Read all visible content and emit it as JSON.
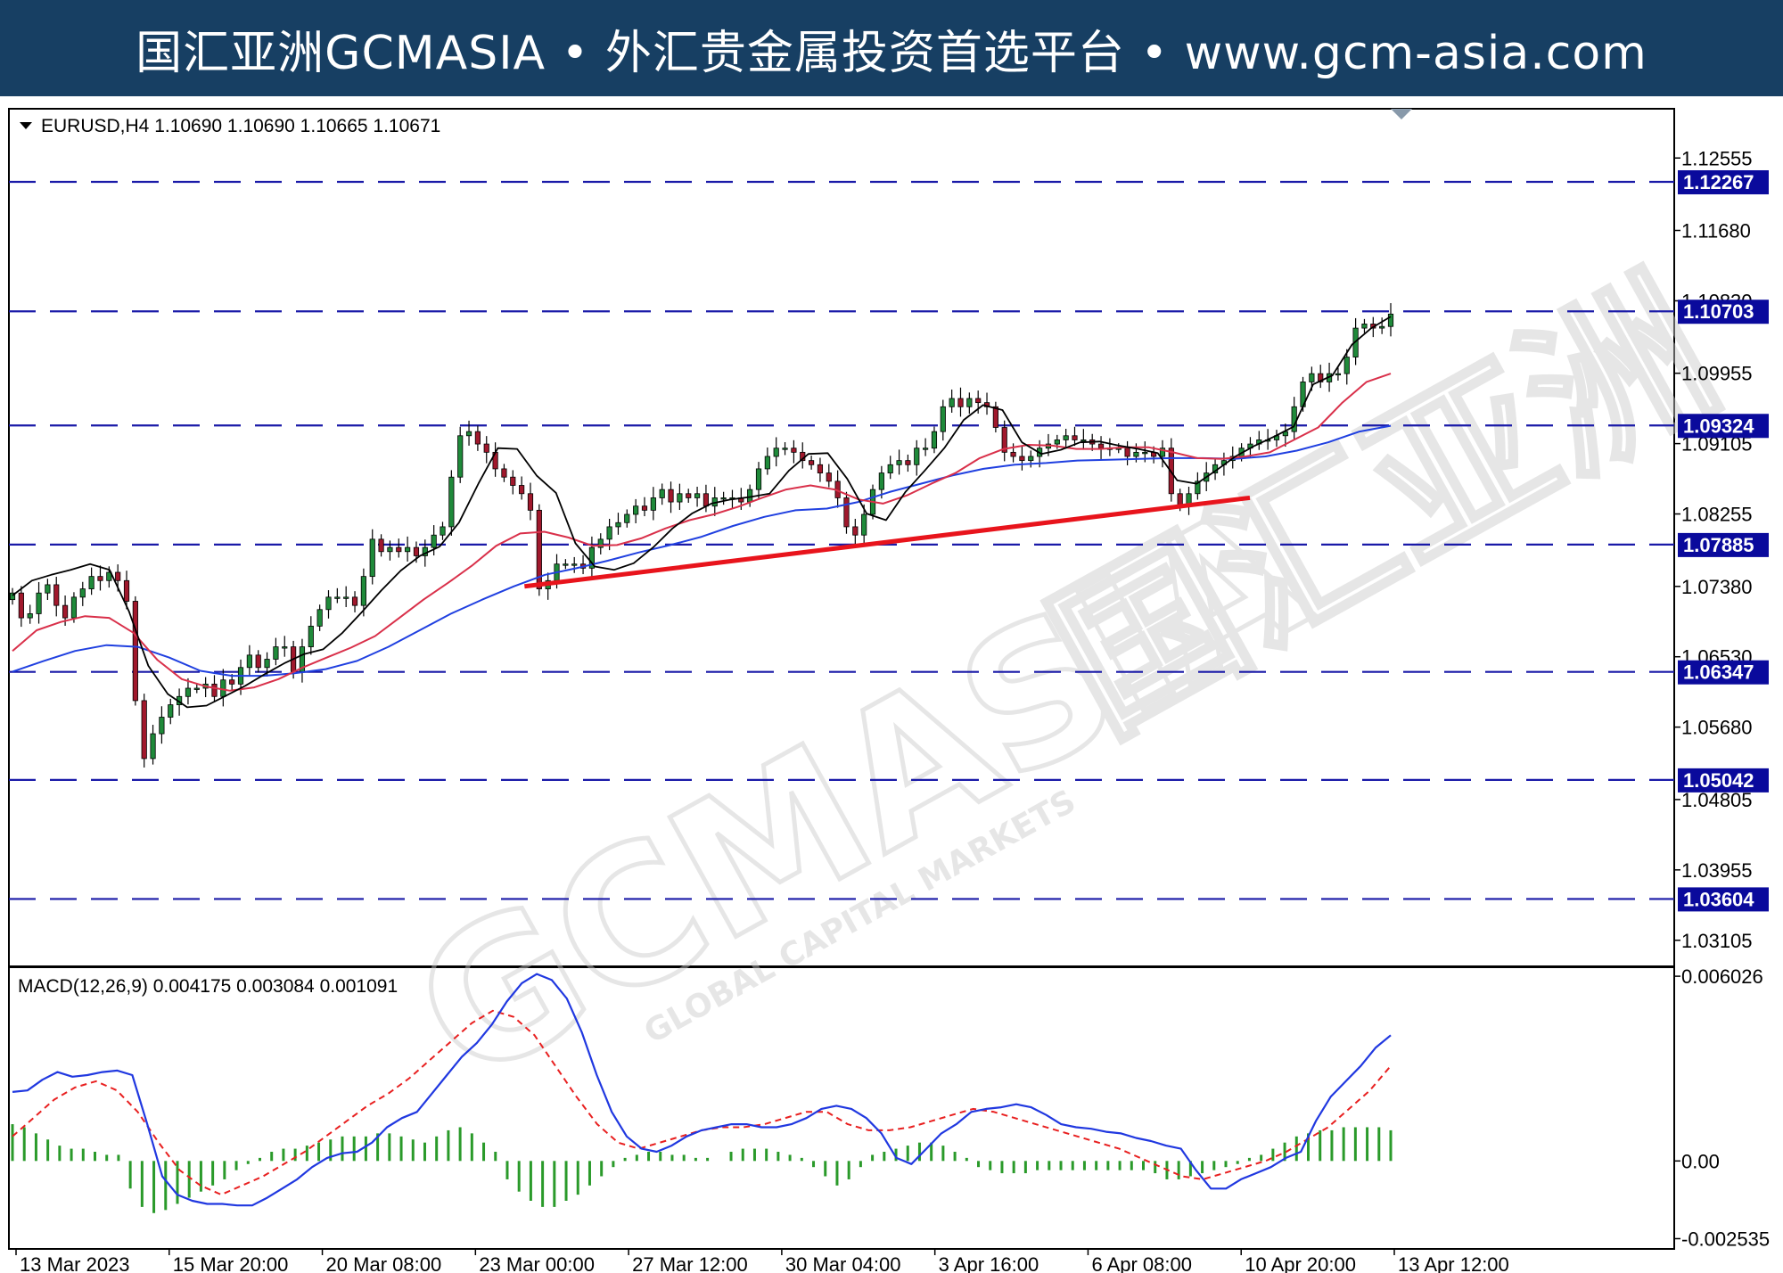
{
  "banner": {
    "text": "国汇亚洲GCMASIA • 外汇贵金属投资首选平台 • www.gcm-asia.com"
  },
  "colors": {
    "banner_bg": "#173f63",
    "level_line": "#1a1aa8",
    "level_tag": "#0a0a9c",
    "trendline": "#e8141c",
    "ma_fast": "#000000",
    "ma_mid": "#d9304a",
    "ma_slow": "#2040e0",
    "macd_line": "#2038e0",
    "signal_line": "#e82020",
    "histogram": "#2a9a2a",
    "candle_up": "#1f8a3a",
    "candle_down": "#a0182c"
  },
  "watermark": {
    "main": "GCMASIA",
    "cn": "国汇亚洲",
    "sub": "GLOBAL CAPITAL MARKETS"
  },
  "chart_data": [
    {
      "type": "candlestick",
      "header": "EURUSD,H4  1.10690 1.10690 1.10665 1.10671",
      "ylim": [
        1.0279,
        1.1315
      ],
      "y_ticks": [
        "1.12555",
        "1.11680",
        "1.10830",
        "1.09955",
        "1.09105",
        "1.08255",
        "1.07380",
        "1.06530",
        "1.05680",
        "1.04805",
        "1.03955",
        "1.03105"
      ],
      "x_labels": [
        "13 Mar 2023",
        "15 Mar 20:00",
        "20 Mar 08:00",
        "23 Mar 00:00",
        "27 Mar 12:00",
        "30 Mar 04:00",
        "3 Apr 16:00",
        "6 Apr 08:00",
        "10 Apr 20:00",
        "13 Apr 12:00"
      ],
      "horizontal_levels": [
        "1.12267",
        "1.10703",
        "1.09324",
        "1.07885",
        "1.06347",
        "1.05042",
        "1.03604"
      ],
      "trendline": {
        "from": [
          "23 Mar 00:00",
          1.0738
        ],
        "to": [
          "11 Apr",
          1.0845
        ]
      },
      "close_path": [
        1.073,
        1.07,
        1.0705,
        1.073,
        1.074,
        1.0715,
        1.07,
        1.0725,
        1.0735,
        1.075,
        1.0745,
        1.0755,
        1.0745,
        1.072,
        1.06,
        1.053,
        1.056,
        1.058,
        1.0595,
        1.0605,
        1.0615,
        1.0615,
        1.062,
        1.0605,
        1.0625,
        1.062,
        1.064,
        1.0655,
        1.064,
        1.065,
        1.0665,
        1.0665,
        1.0635,
        1.0665,
        1.069,
        1.071,
        1.0725,
        1.0725,
        1.0725,
        1.0715,
        1.075,
        1.0795,
        1.078,
        1.0785,
        1.078,
        1.0785,
        1.0775,
        1.0785,
        1.08,
        1.081,
        1.087,
        1.092,
        1.0925,
        1.091,
        1.09,
        1.088,
        1.087,
        1.086,
        1.085,
        1.083,
        1.0735,
        1.0745,
        1.0765,
        1.0765,
        1.0765,
        1.076,
        1.0785,
        1.0795,
        1.081,
        1.0815,
        1.0825,
        1.0835,
        1.083,
        1.0845,
        1.0855,
        1.084,
        1.085,
        1.0845,
        1.085,
        1.0835,
        1.0845,
        1.0845,
        1.0845,
        1.084,
        1.0855,
        1.088,
        1.0895,
        1.0905,
        1.0905,
        1.09,
        1.089,
        1.0885,
        1.0875,
        1.0865,
        1.0845,
        1.081,
        1.08,
        1.0825,
        1.0855,
        1.0875,
        1.0885,
        1.089,
        1.0885,
        1.0905,
        1.0905,
        1.0925,
        1.0955,
        1.0965,
        1.0955,
        1.0965,
        1.096,
        1.0955,
        1.093,
        1.09,
        1.0895,
        1.089,
        1.0895,
        1.0905,
        1.091,
        1.0915,
        1.092,
        1.0915,
        1.0915,
        1.091,
        1.0905,
        1.0905,
        1.0905,
        1.0895,
        1.09,
        1.09,
        1.0895,
        1.0905,
        1.085,
        1.0835,
        1.085,
        1.0865,
        1.0875,
        1.0885,
        1.089,
        1.0895,
        1.0905,
        1.091,
        1.0915,
        1.0915,
        1.092,
        1.0925,
        1.0955,
        1.0985,
        1.0995,
        1.0985,
        1.0995,
        1.0995,
        1.1015,
        1.105,
        1.1055,
        1.105,
        1.1052,
        1.1067
      ],
      "ma_fast": [
        1.0727,
        1.0745,
        1.0752,
        1.0758,
        1.0765,
        1.0758,
        1.0708,
        1.0642,
        1.0608,
        1.0592,
        1.0594,
        1.0606,
        1.0618,
        1.0632,
        1.0645,
        1.0656,
        1.0662,
        1.0682,
        1.0707,
        1.0733,
        1.0757,
        1.0775,
        1.0786,
        1.0815,
        1.0862,
        1.0905,
        1.0904,
        1.0872,
        1.0851,
        1.079,
        1.0762,
        1.0758,
        1.0766,
        1.0785,
        1.0808,
        1.0826,
        1.0838,
        1.0843,
        1.0846,
        1.085,
        1.0878,
        1.0898,
        1.0899,
        1.0868,
        1.0826,
        1.0818,
        1.0852,
        1.0878,
        1.0905,
        1.0939,
        1.0957,
        1.0951,
        1.0912,
        1.0898,
        1.0903,
        1.0912,
        1.0913,
        1.0908,
        1.0904,
        1.0899,
        1.0866,
        1.0862,
        1.0878,
        1.0895,
        1.0908,
        1.0919,
        1.0931,
        1.0982,
        1.0993,
        1.103,
        1.105,
        1.1064
      ],
      "ma_mid": [
        1.066,
        1.0685,
        1.0695,
        1.0702,
        1.07,
        1.0682,
        1.0649,
        1.0626,
        1.0617,
        1.0612,
        1.0616,
        1.0626,
        1.064,
        1.0652,
        1.0664,
        1.0678,
        1.07,
        1.0722,
        1.0742,
        1.0763,
        1.0787,
        1.0802,
        1.0804,
        1.0797,
        1.0787,
        1.0788,
        1.0796,
        1.0808,
        1.0818,
        1.0825,
        1.0834,
        1.0845,
        1.0855,
        1.086,
        1.0855,
        1.0843,
        1.0838,
        1.0848,
        1.0862,
        1.0875,
        1.0893,
        1.0904,
        1.0909,
        1.0908,
        1.0904,
        1.0904,
        1.0906,
        1.0906,
        1.09,
        1.0893,
        1.0892,
        1.0895,
        1.09,
        1.0915,
        1.093,
        1.096,
        1.0985,
        1.0995
      ],
      "ma_slow": [
        1.0635,
        1.0648,
        1.066,
        1.0667,
        1.0665,
        1.0652,
        1.0636,
        1.063,
        1.063,
        1.0633,
        1.0638,
        1.0648,
        1.0665,
        1.0685,
        1.0705,
        1.0722,
        1.0738,
        1.0752,
        1.076,
        1.0769,
        1.0779,
        1.0788,
        1.0798,
        1.0811,
        1.0822,
        1.083,
        1.0832,
        1.084,
        1.0852,
        1.0862,
        1.0872,
        1.088,
        1.0885,
        1.0887,
        1.089,
        1.0891,
        1.0892,
        1.0893,
        1.0893,
        1.0892,
        1.0895,
        1.0902,
        1.0912,
        1.0925,
        1.0932
      ]
    },
    {
      "type": "macd",
      "header": "MACD(12,26,9) 0.004175 0.003084 0.001091",
      "params": [
        12,
        26,
        9
      ],
      "ylim": [
        -0.00287,
        0.00632
      ],
      "y_ticks": [
        "0.006026",
        "0.00",
        "-0.002535"
      ],
      "macd_line": [
        0.00225,
        0.0023,
        0.00265,
        0.0029,
        0.00275,
        0.0028,
        0.0029,
        0.00295,
        0.0028,
        0.0012,
        -0.0005,
        -0.0011,
        -0.0013,
        -0.0014,
        -0.0014,
        -0.00145,
        -0.00145,
        -0.0012,
        -0.0009,
        -0.0006,
        -0.0002,
        0.0001,
        0.00025,
        0.0003,
        0.0006,
        0.0011,
        0.0014,
        0.0016,
        0.0022,
        0.0028,
        0.0034,
        0.00385,
        0.00445,
        0.0052,
        0.0058,
        0.0061,
        0.0059,
        0.0053,
        0.0042,
        0.0028,
        0.0016,
        0.0008,
        0.0004,
        0.0003,
        0.0005,
        0.0008,
        0.001,
        0.0011,
        0.0012,
        0.0012,
        0.0011,
        0.0011,
        0.0012,
        0.0014,
        0.0017,
        0.0018,
        0.0017,
        0.0014,
        0.0009,
        0.0001,
        -0.0001,
        0.0004,
        0.0009,
        0.0012,
        0.0016,
        0.0017,
        0.00175,
        0.00185,
        0.00175,
        0.0015,
        0.0012,
        0.0011,
        0.00105,
        0.00095,
        0.0009,
        0.00075,
        0.00065,
        0.0005,
        0.0004,
        -0.0003,
        -0.0009,
        -0.0009,
        -0.0006,
        -0.0004,
        -0.0002,
        0.0001,
        0.0003,
        0.0013,
        0.0021,
        0.0026,
        0.0031,
        0.0037,
        0.0041
      ],
      "signal_line": [
        0.0008,
        0.0014,
        0.002,
        0.0024,
        0.0026,
        0.0023,
        0.0016,
        0.0006,
        -0.0003,
        -0.0008,
        -0.0011,
        -0.0008,
        -0.0005,
        -0.0001,
        0.0003,
        0.0008,
        0.0013,
        0.0018,
        0.0022,
        0.0027,
        0.0033,
        0.0039,
        0.0045,
        0.0049,
        0.0047,
        0.0041,
        0.0031,
        0.0021,
        0.0012,
        0.0006,
        0.0004,
        0.0006,
        0.0008,
        0.001,
        0.0011,
        0.0011,
        0.0012,
        0.0014,
        0.0016,
        0.0016,
        0.0012,
        0.001,
        0.001,
        0.0011,
        0.0013,
        0.0015,
        0.0017,
        0.0016,
        0.0014,
        0.0012,
        0.001,
        0.0008,
        0.0006,
        0.0004,
        0.0001,
        -0.0002,
        -0.0005,
        -0.0006,
        -0.0004,
        -0.0002,
        0.0,
        0.0003,
        0.0007,
        0.0011,
        0.0017,
        0.0023,
        0.0031
      ],
      "histogram": [
        0.0012,
        0.0011,
        0.0009,
        0.0007,
        0.0005,
        0.0004,
        0.0004,
        0.0003,
        0.0002,
        0.0002,
        -0.0009,
        -0.0015,
        -0.0017,
        -0.0016,
        -0.0014,
        -0.0012,
        -0.001,
        -0.0008,
        -0.0006,
        -0.0003,
        -0.0001,
        0.0001,
        0.0003,
        0.0004,
        0.0004,
        0.0005,
        0.0006,
        0.0007,
        0.0008,
        0.0008,
        0.0008,
        0.0009,
        0.0009,
        0.0008,
        0.0007,
        0.0006,
        0.0008,
        0.001,
        0.0011,
        0.0009,
        0.0006,
        0.0003,
        -0.0006,
        -0.001,
        -0.0013,
        -0.0015,
        -0.0015,
        -0.0013,
        -0.0011,
        -0.0008,
        -0.0005,
        -0.0002,
        0.0001,
        0.0002,
        0.0003,
        0.0003,
        0.0002,
        0.0002,
        0.0001,
        0.0001,
        0.0,
        0.0003,
        0.0004,
        0.0004,
        0.0004,
        0.0003,
        0.0002,
        0.0001,
        -0.0002,
        -0.0005,
        -0.0008,
        -0.0006,
        -0.0002,
        0.0002,
        0.0003,
        0.0004,
        0.0005,
        0.0006,
        0.0006,
        0.0005,
        0.0003,
        0.0001,
        -0.0002,
        -0.0003,
        -0.0004,
        -0.0004,
        -0.0004,
        -0.0003,
        -0.0003,
        -0.0003,
        -0.0003,
        -0.0003,
        -0.0003,
        -0.0003,
        -0.0003,
        -0.0003,
        -0.0003,
        -0.0004,
        -0.0006,
        -0.0006,
        -0.0005,
        -0.0004,
        -0.0003,
        -0.0002,
        -0.0001,
        0.0001,
        0.0002,
        0.0004,
        0.0006,
        0.0008,
        0.0009,
        0.001,
        0.001,
        0.0011,
        0.0011,
        0.0011,
        0.0011,
        0.001
      ]
    }
  ]
}
